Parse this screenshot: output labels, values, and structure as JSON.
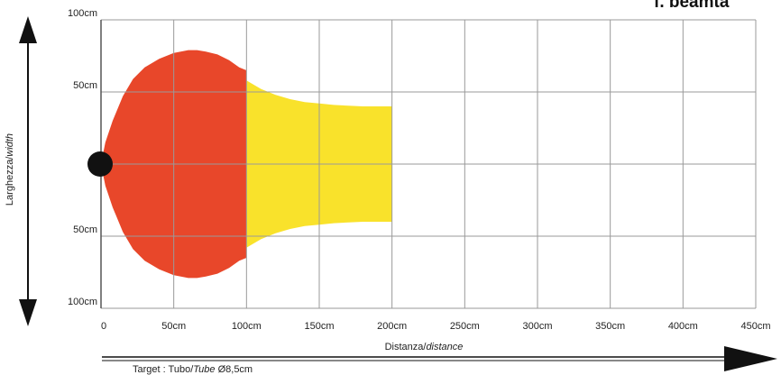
{
  "heading": "f. beamta",
  "chart_data": {
    "type": "area",
    "xlabel": {
      "main": "Distanza/",
      "italic": "distance"
    },
    "ylabel": {
      "main": "Larghezza/",
      "italic": "width"
    },
    "target": {
      "main": "Target : Tubo/",
      "italic": "Tube",
      "rest": " Ø8,5cm"
    },
    "xlim": [
      0,
      450
    ],
    "ylim": [
      -100,
      100
    ],
    "x_ticks": [
      0,
      50,
      100,
      150,
      200,
      250,
      300,
      350,
      400,
      450
    ],
    "x_tick_labels": [
      "0",
      "50cm",
      "100cm",
      "150cm",
      "200cm",
      "250cm",
      "300cm",
      "350cm",
      "400cm",
      "450cm"
    ],
    "y_ticks": [
      100,
      50,
      -50,
      -100
    ],
    "y_tick_labels": [
      "100cm",
      "50cm",
      "50cm",
      "100cm"
    ],
    "series": [
      {
        "color": "#E8472A",
        "x": [
          0,
          3,
          8,
          15,
          22,
          30,
          40,
          50,
          60,
          66,
          72,
          80,
          88,
          95,
          100
        ],
        "half_width": [
          0,
          15,
          30,
          47,
          59,
          67,
          73,
          77,
          79,
          79,
          78,
          76,
          72,
          67,
          65
        ]
      },
      {
        "color": "#F9E22B",
        "x": [
          100,
          110,
          120,
          130,
          140,
          150,
          160,
          170,
          180,
          190,
          200
        ],
        "half_width": [
          58,
          52,
          48,
          45,
          43,
          42,
          41,
          40.5,
          40,
          40,
          40
        ]
      }
    ],
    "source_marker": {
      "x": 0,
      "y": 0,
      "color": "#111111"
    },
    "grid": true,
    "axis_arrows": {
      "x": "right",
      "y": "both"
    }
  }
}
